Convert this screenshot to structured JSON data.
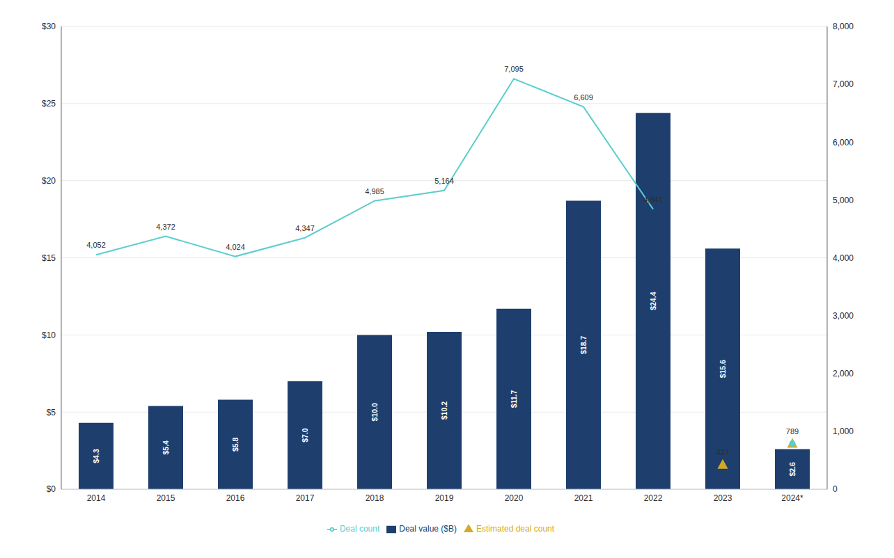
{
  "chart_data": {
    "type": "bar",
    "categories": [
      "2014",
      "2015",
      "2016",
      "2017",
      "2018",
      "2019",
      "2020",
      "2021",
      "2022",
      "2023",
      "2024*"
    ],
    "series": [
      {
        "name": "Deal value ($B)",
        "type": "bar",
        "color": "#1e3f6e",
        "data_labels": true,
        "values": [
          4.3,
          5.4,
          5.8,
          7.0,
          10.0,
          10.2,
          11.7,
          18.7,
          24.4,
          15.6,
          2.6
        ],
        "value_labels": [
          "$4.3",
          "$5.4",
          "$5.8",
          "$7.0",
          "$10.0",
          "$10.2",
          "$11.7",
          "$18.7",
          "$24.4",
          "$15.6",
          "$2.6"
        ]
      },
      {
        "name": "Deal count",
        "type": "line",
        "color": "#5bcece",
        "axis": "y2",
        "data_labels": true,
        "values": [
          4052,
          4372,
          4024,
          4347,
          4985,
          5164,
          7095,
          6609,
          4841,
          null,
          null
        ],
        "value_labels": [
          "4,052",
          "4,372",
          "4,024",
          "4,347",
          "4,985",
          "5,164",
          "7,095",
          "6,609",
          "4,841",
          null,
          null
        ]
      },
      {
        "name": "Estimated deal count",
        "type": "scatter",
        "marker": "triangle",
        "color": "#d4a929",
        "axis": "y2",
        "data_labels": true,
        "values": [
          null,
          null,
          null,
          null,
          null,
          null,
          null,
          null,
          null,
          427,
          789
        ]
      },
      {
        "type": "scatter",
        "marker": "circle",
        "color": "#5bcece",
        "axis": "y2",
        "values": [
          null,
          null,
          null,
          null,
          null,
          null,
          null,
          null,
          null,
          null,
          789
        ]
      }
    ],
    "ylim": [
      0,
      30
    ],
    "yticks": [
      {
        "value": 0,
        "label": "$0"
      },
      {
        "value": 5,
        "label": "$5"
      },
      {
        "value": 10,
        "label": "$10"
      },
      {
        "value": 15,
        "label": "$15"
      },
      {
        "value": 20,
        "label": "$20"
      },
      {
        "value": 25,
        "label": "$25"
      },
      {
        "value": 30,
        "label": "$30"
      }
    ],
    "y2lim": [
      0,
      8000
    ],
    "y2ticks": [
      0,
      {
        "value": 1000,
        "label": "1,000"
      },
      {
        "value": 2000,
        "label": "2,000"
      },
      {
        "value": 3000,
        "label": "3,000"
      },
      {
        "value": 4000,
        "label": "4,000"
      },
      {
        "value": 5000,
        "label": "5,000"
      },
      {
        "value": 6000,
        "label": "6,000"
      },
      {
        "value": 7000,
        "label": "7,000"
      },
      {
        "value": 8000,
        "label": "8,000"
      }
    ],
    "grid": true,
    "legend": "bottom"
  }
}
